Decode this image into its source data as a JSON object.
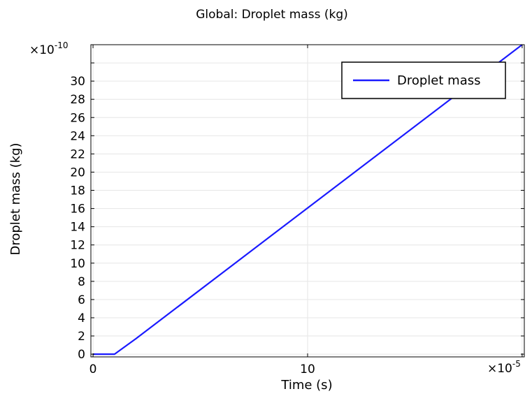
{
  "chart_data": {
    "type": "line",
    "title": "Global: Droplet mass (kg)",
    "xlabel": "Time (s)",
    "ylabel": "Droplet mass (kg)",
    "x_multiplier": "×10",
    "x_exponent": "-5",
    "y_multiplier": "×10",
    "y_exponent": "-10",
    "xlim": [
      -0.1,
      20.1
    ],
    "ylim": [
      -0.3,
      34.0
    ],
    "x_ticks": [
      0,
      10,
      20
    ],
    "x_tick_labels": [
      "0",
      "10",
      ""
    ],
    "y_ticks": [
      0,
      2,
      4,
      6,
      8,
      10,
      12,
      14,
      16,
      18,
      20,
      22,
      24,
      26,
      28,
      30,
      32
    ],
    "y_tick_labels": [
      "0",
      "2",
      "4",
      "6",
      "8",
      "10",
      "12",
      "14",
      "16",
      "18",
      "20",
      "22",
      "24",
      "26",
      "28",
      "30",
      ""
    ],
    "grid": true,
    "legend_position": "top-right",
    "series": [
      {
        "name": "Droplet mass",
        "color": "#1a1aff",
        "x": [
          0,
          1,
          2,
          20
        ],
        "y": [
          0,
          0,
          1.7,
          34.0
        ]
      }
    ]
  }
}
